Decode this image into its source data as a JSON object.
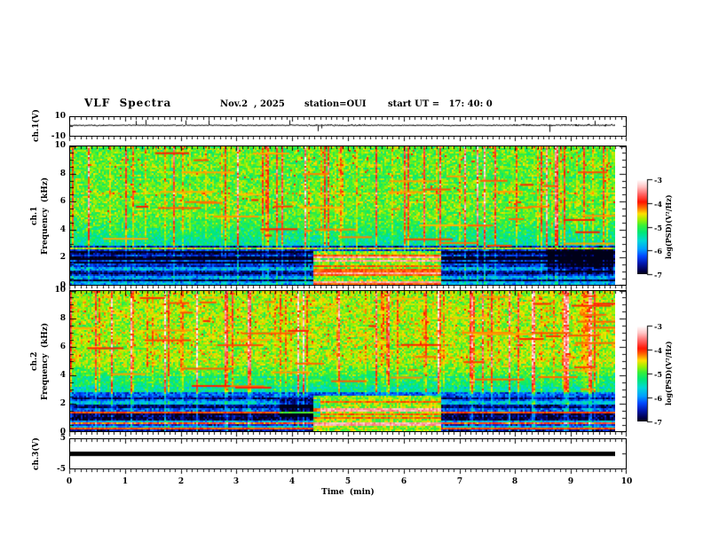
{
  "header": {
    "title": "VLF  Spectra",
    "date": "Nov.2  , 2025",
    "station": "station=OUI",
    "start_ut": "start UT =   17: 40: 0"
  },
  "axes": {
    "time_label": "Time  (min)",
    "time_ticks": [
      0,
      1,
      2,
      3,
      4,
      5,
      6,
      7,
      8,
      9,
      10
    ],
    "time_minor_step_min": 0.1,
    "freq_label": "Frequency  (kHz)",
    "freq_ticks": [
      0,
      2,
      4,
      6,
      8,
      10
    ],
    "freq_minor_step_khz": 0.5
  },
  "panels": {
    "ch1_wave": {
      "label": "ch.1(V)",
      "ymax": "10",
      "ymin": "-10"
    },
    "ch1_spec": {
      "channel": "ch.1"
    },
    "ch2_spec": {
      "channel": "ch.2"
    },
    "ch3_wave": {
      "label": "ch.3(V)",
      "ymax": "5",
      "ymin": "-5"
    }
  },
  "colorbar": {
    "label": "log(PSD)(V²/Hz)",
    "ticks": [
      "-3",
      "-4",
      "-5",
      "-6",
      "-7"
    ],
    "value_range": [
      -7,
      -3
    ]
  },
  "colormap": {
    "stops": [
      [
        -7.0,
        "#000018"
      ],
      [
        -6.85,
        "#000050"
      ],
      [
        -6.55,
        "#0018b0"
      ],
      [
        -6.25,
        "#0048ff"
      ],
      [
        -5.95,
        "#00a0ff"
      ],
      [
        -5.6,
        "#00d8d8"
      ],
      [
        -5.25,
        "#00e878"
      ],
      [
        -4.95,
        "#38f038"
      ],
      [
        -4.7,
        "#a0f000"
      ],
      [
        -4.45,
        "#ffe000"
      ],
      [
        -4.2,
        "#ff7000"
      ],
      [
        -3.95,
        "#ff1400"
      ],
      [
        -3.6,
        "#ff6a6a"
      ],
      [
        -3.3,
        "#ffc4c4"
      ],
      [
        -3.0,
        "#ffffff"
      ]
    ]
  },
  "chart_data": [
    {
      "type": "line",
      "name": "ch1_waveform",
      "ylabel": "ch.1(V)",
      "ylim": [
        -10,
        10
      ],
      "xlim": [
        0,
        10
      ],
      "trace_end_min": 9.78,
      "baseline_V": 0,
      "noise_amplitude_V": 1.5,
      "notable_spike_minutes": [
        0.45,
        0.65,
        4.3,
        4.85,
        5.05,
        6.9,
        9.2
      ],
      "spike_range_V": [
        -9,
        7
      ],
      "description": "dense black broadband noise trace centered on 0 V with sporadic impulsive spikes"
    },
    {
      "type": "heatmap",
      "name": "ch1_spectrogram",
      "ylabel": "ch.1 Frequency (kHz)",
      "ylim": [
        0,
        10
      ],
      "xlim": [
        0,
        10
      ],
      "value_label": "log(PSD)(V²/Hz)",
      "value_range": [
        -7,
        -3
      ],
      "bands": {
        "above_5kHz_level": -4.88,
        "mid_2.7_5kHz_level": -5.45,
        "dark_band_1.2_2.7kHz_level": -6.35,
        "below_1.2kHz_level": -5.9
      },
      "features": [
        "vertical yellow/red sferic streaks at all times, strongest above 3 kHz",
        "dark blue absorption band 1.2-2.7 kHz",
        "horizontal striations (cyan/white/red lines) below 3 kHz",
        "light green/white/red patch 4.35-6.65 min below 2.4 kHz",
        "darker blue block 8.6-9.8 min, 0.8-2.5 kHz",
        "spectrogram data ends near 9.78 min"
      ]
    },
    {
      "type": "heatmap",
      "name": "ch2_spectrogram",
      "ylabel": "ch.2 Frequency (kHz)",
      "ylim": [
        0,
        10
      ],
      "xlim": [
        0,
        10
      ],
      "value_label": "log(PSD)(V²/Hz)",
      "value_range": [
        -7,
        -3
      ],
      "bands": {
        "above_5kHz_level": -4.68,
        "mid_2.7_5kHz_level": -5.4,
        "dark_band_1.2_2.7kHz_level": -6.2,
        "below_1.2kHz_level": -5.85
      },
      "features": [
        "warmer (yellow-orange) background above 5 kHz than ch.1",
        "vertical red sferic streaks",
        "dark blue block 3.75-4.5 min, 0.9-2.2 kHz",
        "light green/white/red patch 4.35-6.65 min below 2.4 kHz",
        "horizontal red/white striations at low frequency"
      ]
    },
    {
      "type": "line",
      "name": "ch3_waveform",
      "ylabel": "ch.3(V)",
      "ylim": [
        -5,
        5
      ],
      "xlim": [
        0,
        10
      ],
      "trace_end_min": 9.78,
      "value_V": 0,
      "description": "thick flat black line at ~0 V for the whole record"
    }
  ]
}
